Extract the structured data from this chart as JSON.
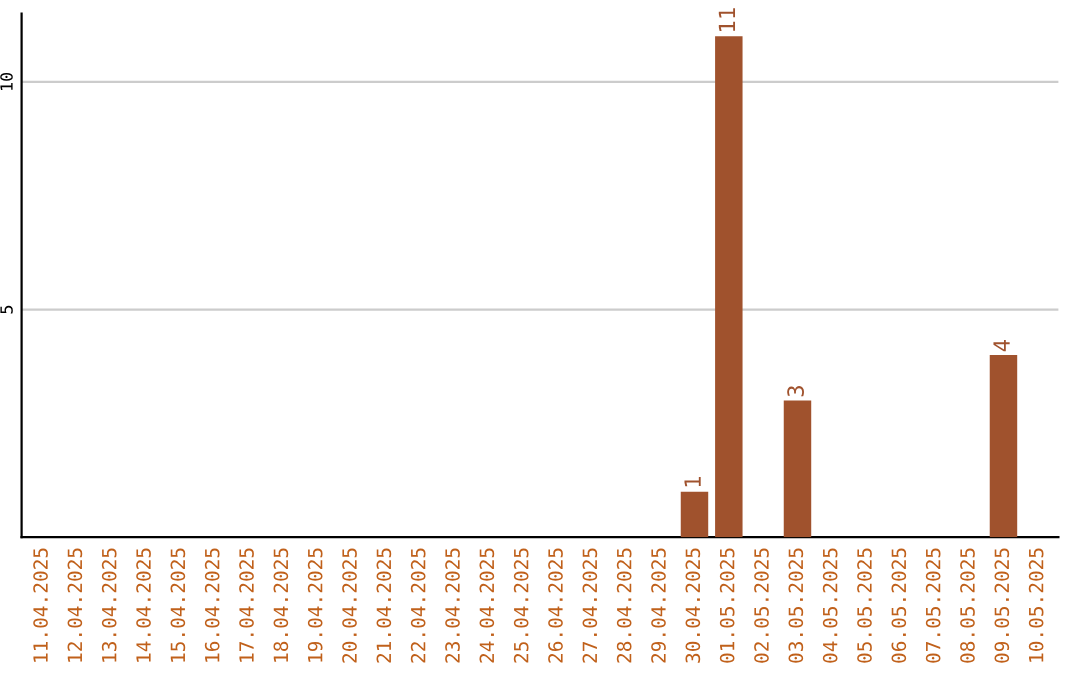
{
  "chart_data": {
    "type": "bar",
    "categories": [
      "11.04.2025",
      "12.04.2025",
      "13.04.2025",
      "14.04.2025",
      "15.04.2025",
      "16.04.2025",
      "17.04.2025",
      "18.04.2025",
      "19.04.2025",
      "20.04.2025",
      "21.04.2025",
      "22.04.2025",
      "23.04.2025",
      "24.04.2025",
      "25.04.2025",
      "26.04.2025",
      "27.04.2025",
      "28.04.2025",
      "29.04.2025",
      "30.04.2025",
      "01.05.2025",
      "02.05.2025",
      "03.05.2025",
      "04.05.2025",
      "05.05.2025",
      "06.05.2025",
      "07.05.2025",
      "08.05.2025",
      "09.05.2025",
      "10.05.2025"
    ],
    "values": [
      null,
      null,
      null,
      null,
      null,
      null,
      null,
      null,
      null,
      null,
      null,
      null,
      null,
      null,
      null,
      null,
      null,
      null,
      null,
      1,
      11,
      null,
      3,
      null,
      null,
      null,
      null,
      null,
      4,
      null
    ],
    "color": "#a0522d",
    "ylim": [
      0,
      11.5
    ],
    "yticks": [
      5,
      10
    ],
    "grid": "y",
    "data_labels": true
  }
}
